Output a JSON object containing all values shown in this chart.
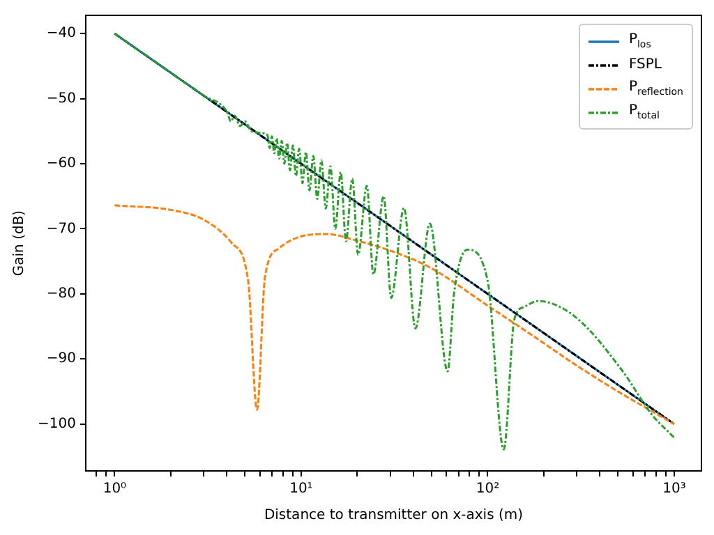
{
  "chart_data": {
    "type": "line",
    "xlabel": "Distance to transmitter on x-axis (m)",
    "ylabel": "Gain (dB)",
    "log": "x",
    "xlim": [
      0.71,
      1400
    ],
    "ylim": [
      -107.2,
      -37.2
    ],
    "xticks": [
      {
        "value": 0.8,
        "label": null
      },
      {
        "value": 0.9,
        "label": null
      },
      {
        "value": 1,
        "label": "10⁰"
      },
      {
        "value": 2,
        "label": null
      },
      {
        "value": 3,
        "label": null
      },
      {
        "value": 4,
        "label": null
      },
      {
        "value": 5,
        "label": null
      },
      {
        "value": 6,
        "label": null
      },
      {
        "value": 7,
        "label": null
      },
      {
        "value": 8,
        "label": null
      },
      {
        "value": 9,
        "label": null
      },
      {
        "value": 10,
        "label": "10¹"
      },
      {
        "value": 20,
        "label": null
      },
      {
        "value": 30,
        "label": null
      },
      {
        "value": 40,
        "label": null
      },
      {
        "value": 50,
        "label": null
      },
      {
        "value": 60,
        "label": null
      },
      {
        "value": 70,
        "label": null
      },
      {
        "value": 80,
        "label": null
      },
      {
        "value": 90,
        "label": null
      },
      {
        "value": 100,
        "label": "10²"
      },
      {
        "value": 200,
        "label": null
      },
      {
        "value": 300,
        "label": null
      },
      {
        "value": 400,
        "label": null
      },
      {
        "value": 500,
        "label": null
      },
      {
        "value": 600,
        "label": null
      },
      {
        "value": 700,
        "label": null
      },
      {
        "value": 800,
        "label": null
      },
      {
        "value": 900,
        "label": null
      },
      {
        "value": 1000,
        "label": "10³"
      }
    ],
    "yticks": [
      -100,
      -90,
      -80,
      -70,
      -60,
      -50,
      -40
    ],
    "grid": false,
    "legend": "top right",
    "series": [
      {
        "name": "P$_{los}$",
        "color": "#1f77b4",
        "line_style": "solid",
        "x": [
          1,
          10,
          100,
          1000
        ],
        "values": [
          -40,
          -60,
          -80,
          -100
        ]
      },
      {
        "name": "FSPL",
        "color": "#000000",
        "line_style": "dashdot",
        "x": [
          1,
          10,
          100,
          1000
        ],
        "values": [
          -40,
          -60,
          -80,
          -100
        ]
      },
      {
        "name": "P$_{reflection}$",
        "color": "#ff7f0e",
        "line_style": "dashed",
        "x": [
          1,
          2,
          3,
          4.25,
          5.2,
          5.8,
          6.4,
          7.6,
          10.2,
          13.6,
          20.4,
          29,
          48.8,
          100,
          166,
          300,
          500,
          1000
        ],
        "values": [
          -66.4,
          -67.1,
          -68.6,
          -72.2,
          -78,
          -97.8,
          -77.4,
          -73,
          -71.1,
          -70.8,
          -71.9,
          -73.2,
          -75.9,
          -81.8,
          -86,
          -91,
          -95,
          -100
        ]
      },
      {
        "name": "P$_{total}$",
        "color": "#2ca02c",
        "line_style": "dashdot",
        "x": [
          1,
          2,
          3,
          4,
          4.2,
          4.4,
          4.7,
          5,
          5.4,
          5.8,
          6.2,
          6.6,
          6.78,
          6.97,
          7.18,
          7.39,
          7.63,
          7.87,
          8.13,
          8.41,
          8.71,
          9.04,
          9.38,
          9.76,
          10.17,
          10.6,
          11.09,
          11.62,
          12.2,
          12.84,
          13.56,
          14.35,
          15.25,
          16.3,
          17.4,
          18.8,
          20.2,
          22.5,
          24.4,
          27.7,
          30.4,
          35.6,
          41,
          49,
          61,
          66,
          78,
          100,
          122,
          139,
          157,
          186,
          294,
          530,
          752,
          1000
        ],
        "values": [
          -40,
          -46,
          -49.5,
          -52,
          -53.5,
          -52.6,
          -54.2,
          -53.5,
          -55,
          -55.2,
          -55.3,
          -55.6,
          -57.6,
          -55.8,
          -58.4,
          -56.1,
          -59.2,
          -56.5,
          -60,
          -56.8,
          -61,
          -57.2,
          -61.9,
          -57.7,
          -63,
          -58.2,
          -64.1,
          -58.8,
          -65.4,
          -59.5,
          -66.9,
          -60.4,
          -70,
          -61.3,
          -71.9,
          -62.3,
          -74,
          -63.4,
          -77,
          -65,
          -80.6,
          -66.8,
          -85.3,
          -69.2,
          -91.9,
          -80,
          -73.2,
          -78,
          -103.9,
          -83.9,
          -82,
          -81.1,
          -83.5,
          -91.9,
          -98.4,
          -102.1
        ]
      }
    ]
  }
}
